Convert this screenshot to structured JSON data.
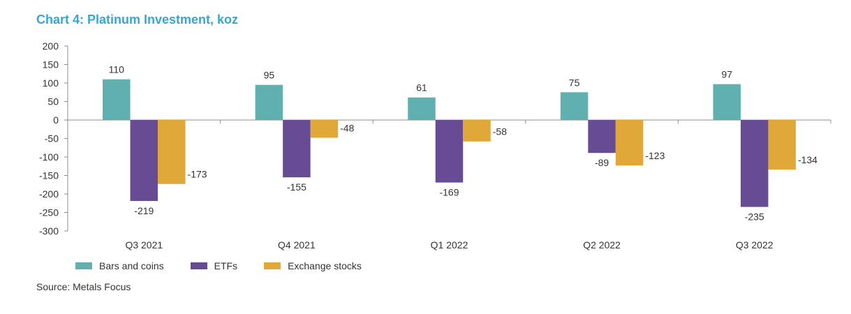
{
  "chart_data": {
    "type": "bar",
    "title": "Chart 4: Platinum Investment, koz",
    "categories": [
      "Q3 2021",
      "Q4 2021",
      "Q1 2022",
      "Q2 2022",
      "Q3 2022"
    ],
    "series": [
      {
        "name": "Bars and coins",
        "color": "#5FB0AE",
        "values": [
          110,
          95,
          61,
          75,
          97
        ]
      },
      {
        "name": "ETFs",
        "color": "#674B94",
        "values": [
          -219,
          -155,
          -169,
          -89,
          -235
        ]
      },
      {
        "name": "Exchange stocks",
        "color": "#DFA838",
        "values": [
          -173,
          -48,
          -58,
          -123,
          -134
        ]
      }
    ],
    "ylim": [
      -300,
      200
    ],
    "yticks": [
      200,
      150,
      100,
      50,
      0,
      -50,
      -100,
      -150,
      -200,
      -250,
      -300
    ],
    "grid": false,
    "legend_position": "bottom-left",
    "source": "Source: Metals Focus"
  }
}
